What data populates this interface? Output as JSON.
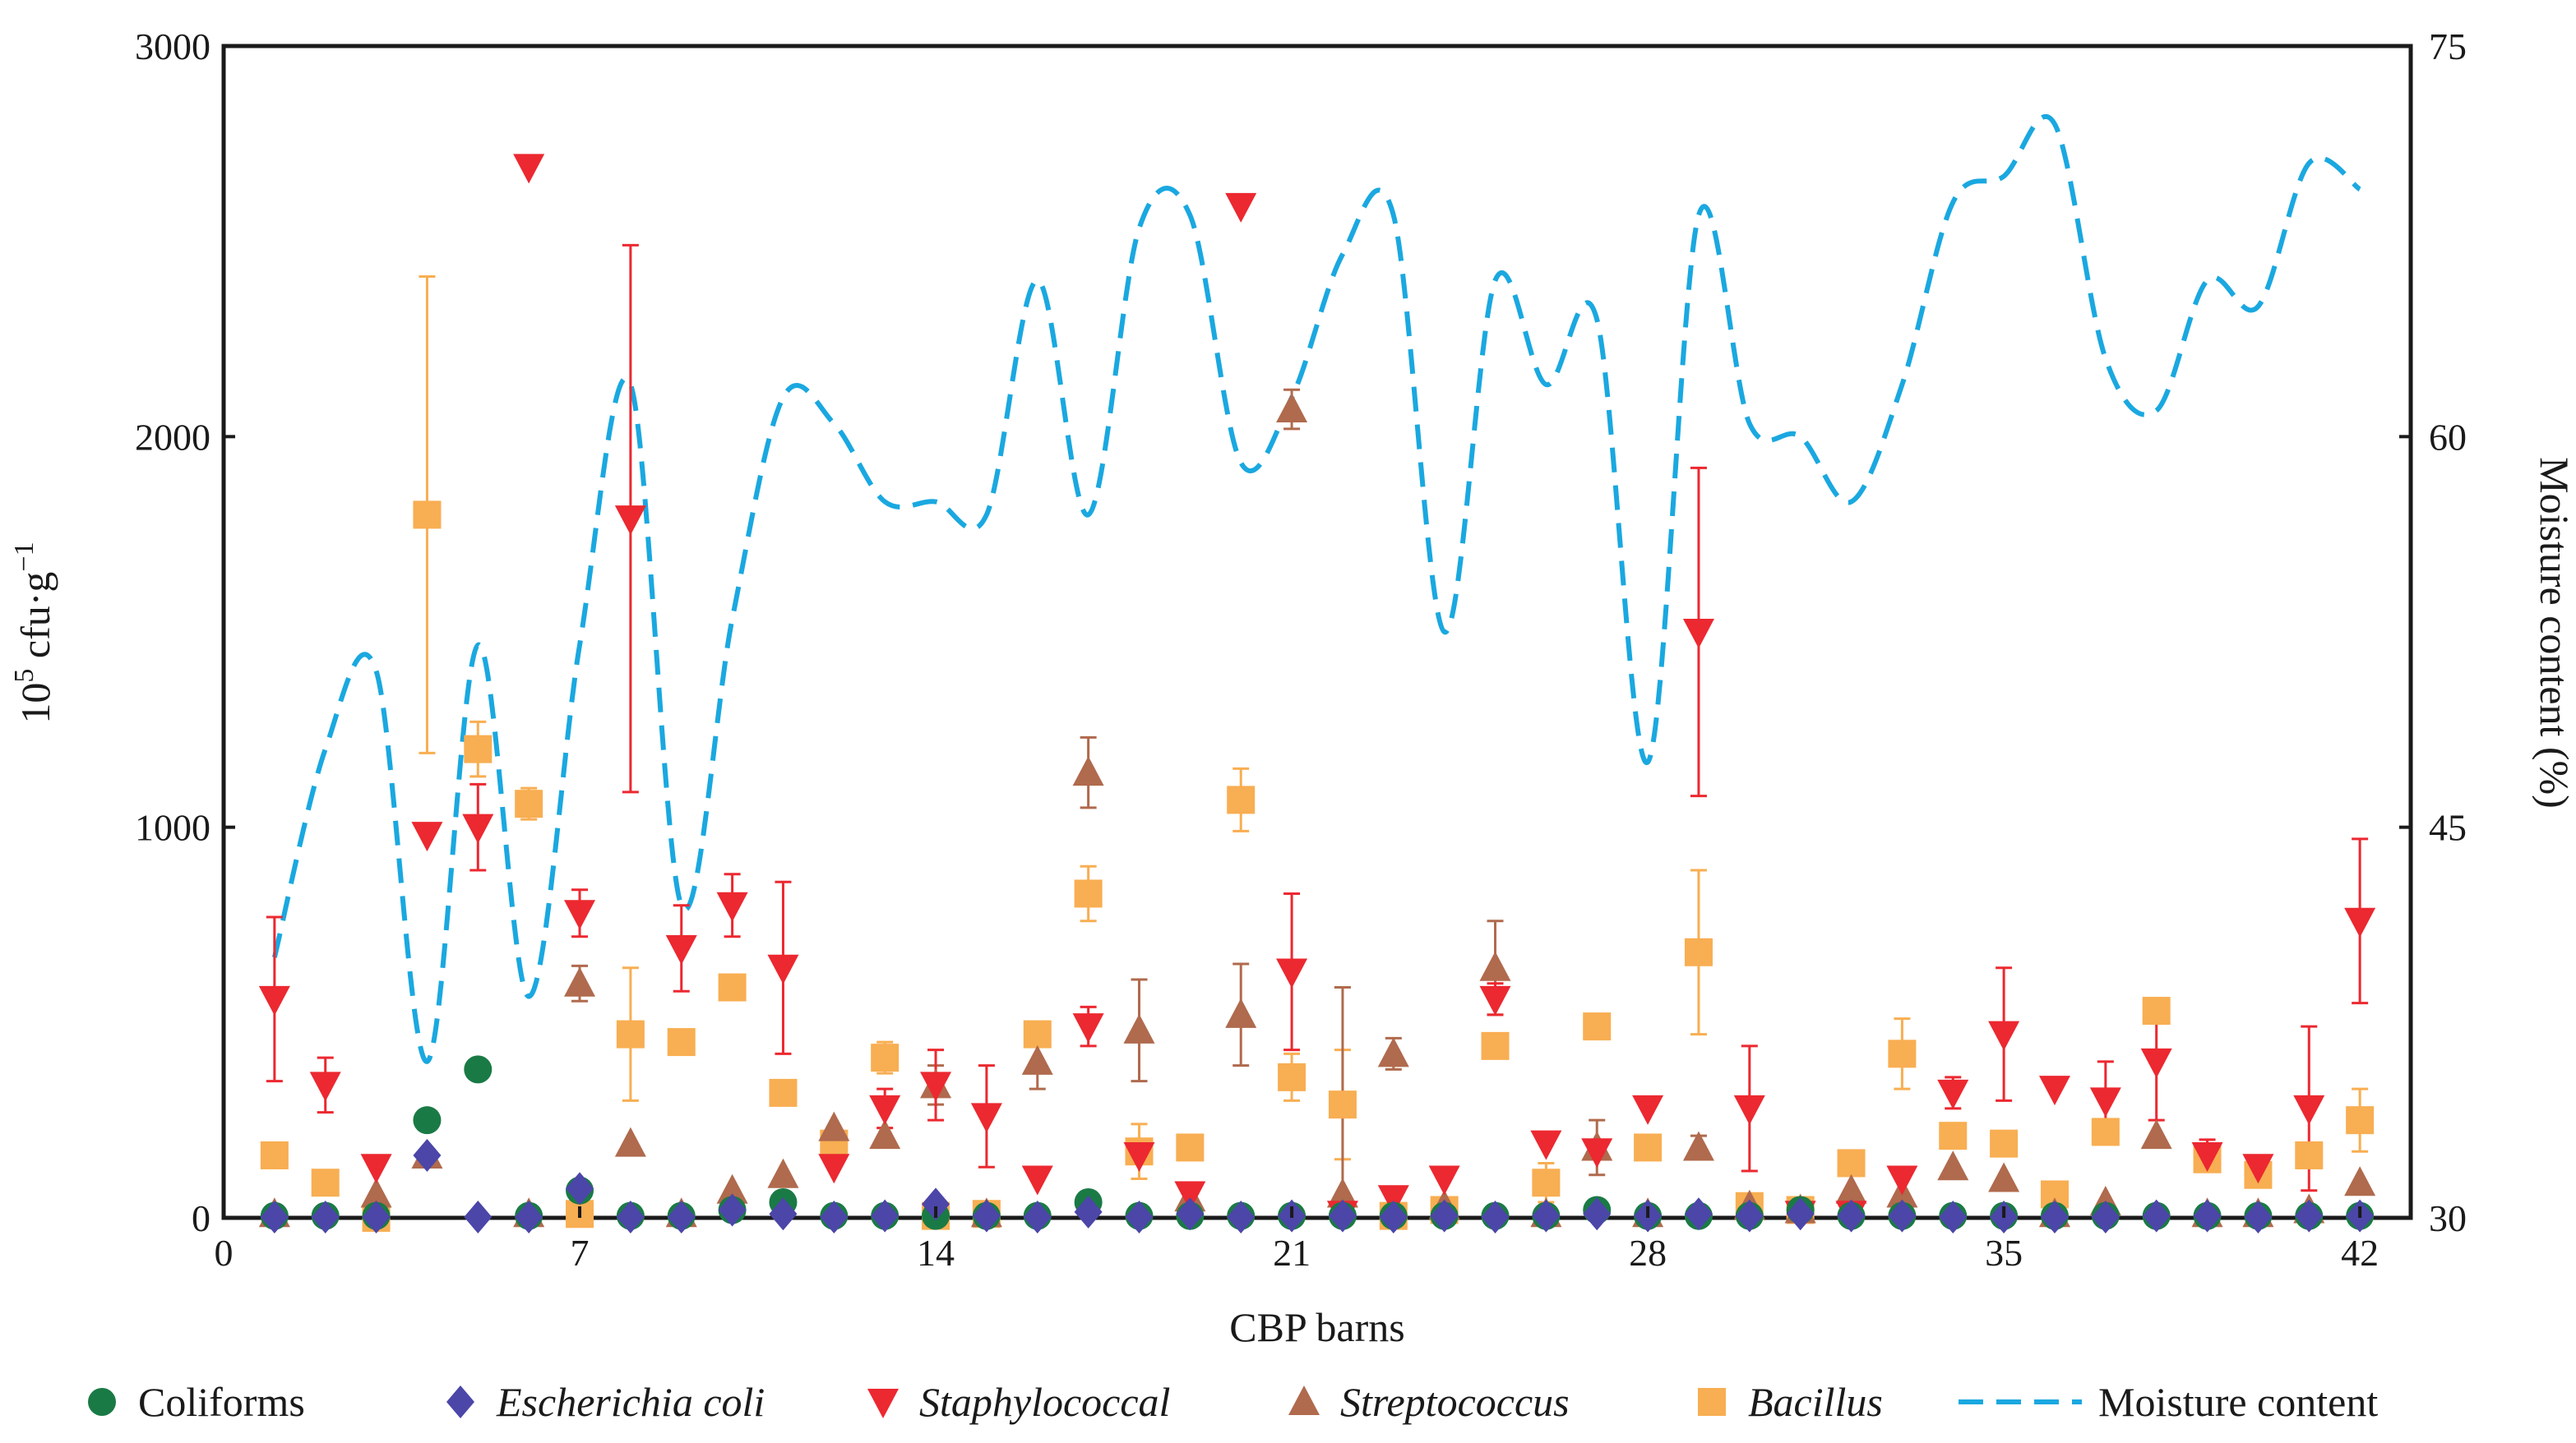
{
  "chart_data": {
    "type": "scatter",
    "xlabel": "CBP barns",
    "ylabel": "10⁵ cfu·g⁻¹",
    "ylabel_parts": {
      "base": "10",
      "exp1": "5",
      "unit": " cfu·g",
      "exp2": "−1"
    },
    "y2label": "Moisture content (%)",
    "xlim": [
      0,
      43
    ],
    "ylim": [
      0,
      3000
    ],
    "y2lim": [
      30,
      75
    ],
    "xticks": [
      0,
      7,
      14,
      21,
      28,
      35,
      42
    ],
    "xtick_labels": [
      "0",
      "7",
      "14",
      "21",
      "28",
      "35",
      "42"
    ],
    "yticks": [
      0,
      1000,
      2000,
      3000
    ],
    "ytick_labels": [
      "0",
      "1000",
      "2000",
      "3000"
    ],
    "y2ticks": [
      30,
      45,
      60,
      75
    ],
    "y2tick_labels": [
      "30",
      "45",
      "60",
      "75"
    ],
    "colors": {
      "coliforms": "#1a7a45",
      "ecoli": "#4b46a8",
      "staph": "#ec2830",
      "strep": "#b06a4d",
      "bacillus": "#f8ae52",
      "moisture": "#1aa8e0"
    },
    "legend": [
      {
        "key": "coliforms",
        "label": "Coliforms",
        "marker": "circle",
        "italic": false
      },
      {
        "key": "ecoli",
        "label": "Escherichia coli",
        "marker": "diamond",
        "italic": true
      },
      {
        "key": "staph",
        "label": "Staphylococcal",
        "marker": "triangle-down",
        "italic": true
      },
      {
        "key": "strep",
        "label": "Streptococcus",
        "marker": "triangle-up",
        "italic": true
      },
      {
        "key": "bacillus",
        "label": "Bacillus",
        "marker": "square",
        "italic": true
      },
      {
        "key": "moisture",
        "label": "Moisture content",
        "marker": "dashed-line",
        "italic": false
      }
    ],
    "series": [
      {
        "key": "coliforms",
        "name": "Coliforms",
        "marker": "circle",
        "x": [
          1,
          2,
          3,
          4,
          5,
          6,
          7,
          8,
          9,
          10,
          11,
          12,
          13,
          14,
          15,
          16,
          17,
          18,
          19,
          20,
          21,
          22,
          23,
          24,
          25,
          26,
          27,
          28,
          29,
          30,
          31,
          32,
          33,
          34,
          35,
          36,
          37,
          38,
          39,
          40,
          41,
          42
        ],
        "y": [
          5,
          5,
          5,
          250,
          380,
          5,
          70,
          5,
          5,
          20,
          40,
          5,
          5,
          5,
          5,
          5,
          40,
          5,
          5,
          5,
          5,
          5,
          5,
          5,
          5,
          5,
          20,
          5,
          5,
          5,
          20,
          5,
          5,
          5,
          5,
          5,
          5,
          5,
          5,
          5,
          5,
          5
        ]
      },
      {
        "key": "ecoli",
        "name": "Escherichia coli",
        "marker": "diamond",
        "x": [
          1,
          2,
          3,
          4,
          5,
          6,
          7,
          8,
          9,
          10,
          11,
          12,
          13,
          14,
          15,
          16,
          17,
          18,
          19,
          20,
          21,
          22,
          23,
          24,
          25,
          26,
          27,
          28,
          29,
          30,
          31,
          32,
          33,
          34,
          35,
          36,
          37,
          38,
          39,
          40,
          41,
          42
        ],
        "y": [
          2,
          2,
          2,
          160,
          2,
          2,
          75,
          2,
          2,
          20,
          10,
          2,
          5,
          35,
          5,
          2,
          15,
          2,
          10,
          2,
          5,
          5,
          2,
          5,
          2,
          5,
          10,
          5,
          10,
          5,
          10,
          5,
          5,
          2,
          2,
          2,
          2,
          5,
          5,
          2,
          5,
          5
        ]
      },
      {
        "key": "staph",
        "name": "Staphylococcal",
        "marker": "triangle-down",
        "x": [
          1,
          2,
          3,
          4,
          5,
          6,
          7,
          8,
          9,
          10,
          11,
          12,
          13,
          14,
          15,
          16,
          17,
          18,
          19,
          20,
          21,
          22,
          23,
          24,
          25,
          26,
          27,
          28,
          29,
          30,
          31,
          32,
          33,
          34,
          35,
          36,
          37,
          38,
          39,
          40,
          41,
          42
        ],
        "y": [
          560,
          340,
          130,
          980,
          1000,
          2690,
          780,
          1790,
          690,
          800,
          640,
          130,
          280,
          340,
          260,
          100,
          490,
          160,
          60,
          2590,
          630,
          10,
          50,
          100,
          560,
          190,
          170,
          280,
          1500,
          280,
          10,
          10,
          100,
          320,
          470,
          330,
          300,
          400,
          160,
          130,
          280,
          760
        ],
        "err": [
          210,
          70,
          0,
          0,
          110,
          0,
          60,
          700,
          110,
          80,
          220,
          0,
          50,
          90,
          130,
          0,
          50,
          0,
          0,
          0,
          200,
          0,
          0,
          0,
          40,
          0,
          0,
          0,
          420,
          160,
          0,
          0,
          0,
          40,
          170,
          0,
          100,
          150,
          40,
          0,
          210,
          210
        ]
      },
      {
        "key": "strep",
        "name": "Streptococcus",
        "marker": "triangle-up",
        "x": [
          1,
          3,
          4,
          6,
          7,
          8,
          9,
          10,
          11,
          12,
          13,
          14,
          15,
          16,
          17,
          18,
          19,
          20,
          21,
          22,
          23,
          24,
          25,
          26,
          27,
          28,
          29,
          30,
          31,
          32,
          33,
          34,
          35,
          36,
          37,
          38,
          39,
          40,
          41,
          42
        ],
        "y": [
          10,
          60,
          160,
          10,
          600,
          190,
          10,
          70,
          110,
          230,
          210,
          340,
          10,
          400,
          1140,
          480,
          50,
          520,
          2070,
          60,
          420,
          30,
          640,
          10,
          180,
          10,
          180,
          30,
          20,
          70,
          60,
          130,
          100,
          10,
          40,
          210,
          10,
          10,
          20,
          90
        ],
        "err": [
          0,
          0,
          0,
          0,
          45,
          0,
          0,
          0,
          0,
          0,
          0,
          50,
          0,
          70,
          90,
          130,
          0,
          130,
          50,
          530,
          40,
          0,
          120,
          0,
          70,
          0,
          30,
          0,
          0,
          0,
          0,
          0,
          0,
          0,
          0,
          0,
          0,
          0,
          0,
          0
        ]
      },
      {
        "key": "bacillus",
        "name": "Bacillus",
        "marker": "square",
        "x": [
          1,
          2,
          3,
          4,
          5,
          6,
          7,
          8,
          9,
          10,
          11,
          12,
          13,
          14,
          15,
          16,
          17,
          18,
          19,
          20,
          21,
          22,
          23,
          24,
          25,
          26,
          27,
          28,
          29,
          30,
          31,
          32,
          33,
          34,
          35,
          36,
          37,
          38,
          39,
          40,
          41,
          42
        ],
        "y": [
          160,
          90,
          0,
          1800,
          1200,
          1060,
          10,
          470,
          450,
          590,
          320,
          190,
          410,
          5,
          10,
          470,
          830,
          170,
          180,
          1070,
          360,
          290,
          5,
          20,
          440,
          90,
          490,
          180,
          680,
          30,
          20,
          140,
          420,
          210,
          190,
          60,
          220,
          530,
          150,
          110,
          160,
          250
        ],
        "err": [
          30,
          0,
          0,
          610,
          70,
          40,
          0,
          170,
          0,
          0,
          0,
          0,
          40,
          0,
          0,
          0,
          70,
          70,
          0,
          80,
          60,
          140,
          0,
          0,
          0,
          50,
          0,
          0,
          210,
          0,
          0,
          0,
          90,
          0,
          0,
          0,
          0,
          30,
          30,
          0,
          0,
          80
        ]
      },
      {
        "key": "moisture",
        "name": "Moisture content",
        "type": "line",
        "axis": "right",
        "x": [
          1,
          2,
          3,
          4,
          5,
          6,
          7,
          8,
          9,
          10,
          11,
          12,
          13,
          14,
          15,
          16,
          17,
          18,
          19,
          20,
          21,
          22,
          23,
          24,
          25,
          26,
          27,
          28,
          29,
          30,
          31,
          32,
          33,
          34,
          35,
          36,
          37,
          38,
          39,
          40,
          41,
          42
        ],
        "y": [
          40,
          48,
          51,
          36,
          52,
          38.5,
          52,
          62,
          42,
          53,
          61.5,
          60.5,
          57.5,
          57.5,
          57,
          66,
          57,
          68,
          68.5,
          59,
          61.5,
          67,
          68.5,
          52.5,
          66,
          62,
          64.5,
          47.5,
          68.5,
          60.5,
          60,
          57.5,
          62,
          69,
          70,
          72,
          63,
          61,
          66,
          65,
          70.5,
          69.5
        ]
      }
    ]
  }
}
